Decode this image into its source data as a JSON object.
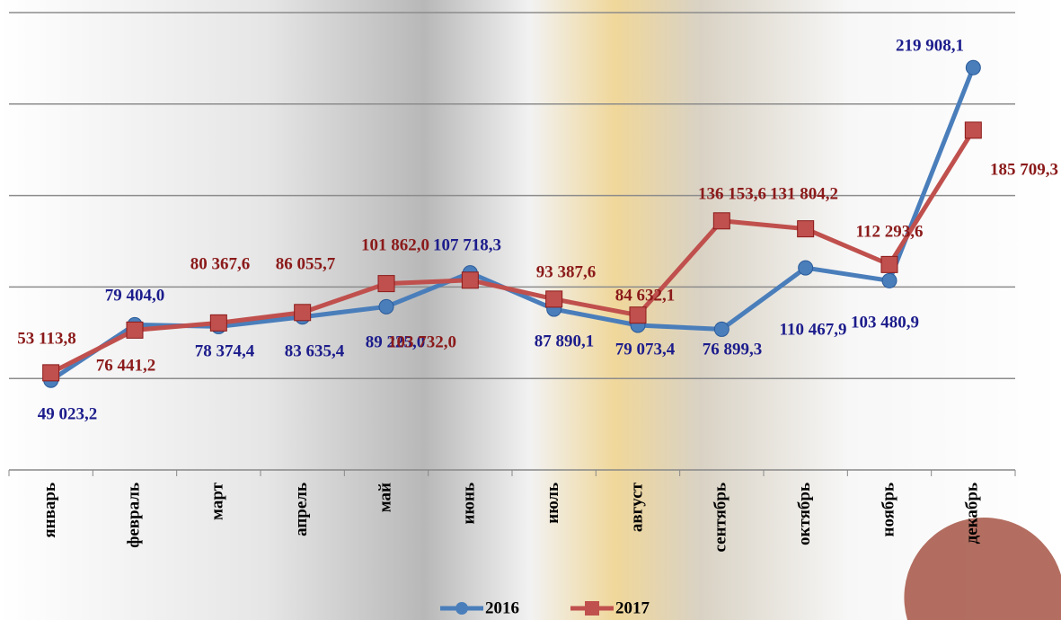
{
  "chart_data": {
    "type": "line",
    "categories": [
      "январь",
      "февраль",
      "март",
      "апрель",
      "май",
      "июнь",
      "июль",
      "август",
      "сентябрь",
      "октябрь",
      "ноябрь",
      "декабрь"
    ],
    "series": [
      {
        "name": "2016",
        "color": "#4a7ebb",
        "label_color": "#1c1c8c",
        "values": [
          49023.2,
          79404.0,
          78374.4,
          83635.4,
          89225.0,
          107718.3,
          87890.1,
          79073.4,
          76899.3,
          110467.9,
          103480.9,
          219908.1
        ],
        "value_labels": [
          "49 023,2",
          "79 404,0",
          "78 374,4",
          "83 635,4",
          "89 225,0",
          "107 718,3",
          "87 890,1",
          "79 073,4",
          "76 899,3",
          "110 467,9",
          "103 480,9",
          "219 908,1"
        ]
      },
      {
        "name": "2017",
        "color": "#c0504d",
        "label_color": "#8b1a1a",
        "values": [
          53113.8,
          76441.2,
          80367.6,
          86055.7,
          101862.0,
          103732.0,
          93387.6,
          84632.1,
          136153.6,
          131804.2,
          112293.6,
          185709.3
        ],
        "value_labels": [
          "53 113,8",
          "76 441,2",
          "80 367,6",
          "86 055,7",
          "101 862,0",
          "103 732,0",
          "93 387,6",
          "84 632,1",
          "136 153,6",
          "131 804,2",
          "112 293,6",
          "185 709,3"
        ]
      }
    ],
    "ylim": [
      0,
      250000
    ],
    "yticks": [
      0,
      50000,
      100000,
      150000,
      200000,
      250000
    ],
    "grid": true,
    "legend": "bottom"
  }
}
